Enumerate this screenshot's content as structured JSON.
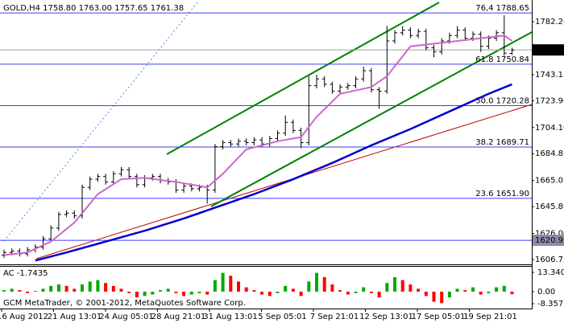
{
  "header": "GOLD,H4 1758.80 1763.00 1757.65 1761.38",
  "footer": "GCM MetaTrader, © 2001-2012, MetaQuotes Software Corp.",
  "chart_data": [
    {
      "type": "ohlc",
      "color": "#000000",
      "ylim": [
        1603.8,
        1798.2
      ],
      "yticks": [
        {
          "value": 1782.2,
          "label": "1782.20"
        },
        1743.15,
        {
          "value": 1723.9,
          "label": "1723.90"
        },
        {
          "value": 1704.1,
          "label": "1704.10"
        },
        1684.85,
        1665.05,
        {
          "value": 1645.8,
          "label": "1645.80"
        },
        {
          "value": 1626,
          "label": "1626.00"
        },
        1606.75
      ],
      "time_labels": [
        "16 Aug 2012",
        "21 Aug 13:01",
        "24 Aug 05:01",
        "28 Aug 21:01",
        "31 Aug 13:01",
        "5 Sep 05:01",
        "7 Sep 21:01",
        "12 Sep 13:01",
        "17 Sep 05:01",
        "19 Sep 21:01"
      ],
      "ohlc": [
        [
          1610,
          1614,
          1608,
          1612
        ],
        [
          1612,
          1615,
          1610,
          1613
        ],
        [
          1613,
          1615,
          1609,
          1611
        ],
        [
          1611,
          1616,
          1609,
          1614
        ],
        [
          1614,
          1618,
          1612,
          1616
        ],
        [
          1616,
          1624,
          1614,
          1622
        ],
        [
          1622,
          1632,
          1620,
          1630
        ],
        [
          1630,
          1642,
          1628,
          1640
        ],
        [
          1640,
          1643,
          1638,
          1641
        ],
        [
          1641,
          1643,
          1637,
          1639
        ],
        [
          1639,
          1662,
          1637,
          1660
        ],
        [
          1660,
          1668,
          1658,
          1666
        ],
        [
          1666,
          1670,
          1664,
          1668
        ],
        [
          1668,
          1670,
          1662,
          1664
        ],
        [
          1664,
          1672,
          1662,
          1670
        ],
        [
          1670,
          1675,
          1668,
          1673
        ],
        [
          1673,
          1675,
          1666,
          1668
        ],
        [
          1668,
          1670,
          1660,
          1662
        ],
        [
          1662,
          1669,
          1660,
          1667
        ],
        [
          1667,
          1670,
          1665,
          1668
        ],
        [
          1668,
          1670,
          1663,
          1665
        ],
        [
          1665,
          1667,
          1662,
          1664
        ],
        [
          1664,
          1666,
          1656,
          1658
        ],
        [
          1658,
          1663,
          1656,
          1661
        ],
        [
          1661,
          1663,
          1657,
          1659
        ],
        [
          1659,
          1662,
          1657,
          1660
        ],
        [
          1660,
          1662,
          1648,
          1658
        ],
        [
          1658,
          1692,
          1656,
          1690
        ],
        [
          1690,
          1695,
          1688,
          1693
        ],
        [
          1693,
          1695,
          1690,
          1692
        ],
        [
          1692,
          1696,
          1690,
          1694
        ],
        [
          1694,
          1696,
          1691,
          1693
        ],
        [
          1693,
          1697,
          1691,
          1695
        ],
        [
          1695,
          1697,
          1690,
          1692
        ],
        [
          1692,
          1698,
          1690,
          1696
        ],
        [
          1696,
          1702,
          1694,
          1700
        ],
        [
          1700,
          1713,
          1698,
          1708
        ],
        [
          1708,
          1710,
          1700,
          1702
        ],
        [
          1702,
          1704,
          1689,
          1693
        ],
        [
          1693,
          1742,
          1691,
          1735
        ],
        [
          1735,
          1743,
          1733,
          1740
        ],
        [
          1740,
          1742,
          1734,
          1736
        ],
        [
          1736,
          1738,
          1729,
          1731
        ],
        [
          1731,
          1736,
          1729,
          1734
        ],
        [
          1734,
          1737,
          1732,
          1735
        ],
        [
          1735,
          1742,
          1733,
          1740
        ],
        [
          1740,
          1749,
          1738,
          1746
        ],
        [
          1746,
          1748,
          1730,
          1732
        ],
        [
          1732,
          1734,
          1718,
          1731
        ],
        [
          1731,
          1779,
          1729,
          1768
        ],
        [
          1768,
          1776,
          1766,
          1774
        ],
        [
          1774,
          1779,
          1772,
          1776
        ],
        [
          1776,
          1778,
          1770,
          1772
        ],
        [
          1772,
          1777,
          1770,
          1775
        ],
        [
          1775,
          1777,
          1761,
          1763
        ],
        [
          1763,
          1765,
          1756,
          1760
        ],
        [
          1760,
          1770,
          1758,
          1768
        ],
        [
          1768,
          1774,
          1766,
          1772
        ],
        [
          1772,
          1779,
          1770,
          1776
        ],
        [
          1776,
          1778,
          1768,
          1770
        ],
        [
          1770,
          1775,
          1768,
          1773
        ],
        [
          1773,
          1775,
          1760,
          1764
        ],
        [
          1764,
          1772,
          1762,
          1770
        ],
        [
          1770,
          1776,
          1768,
          1774
        ],
        [
          1774,
          1787,
          1757,
          1759
        ],
        [
          1758.8,
          1763,
          1757.65,
          1761.38
        ]
      ],
      "series": [
        {
          "color": "#cc66cc",
          "x": [
            0,
            3,
            6,
            9,
            12,
            15,
            18,
            22,
            26,
            28,
            31,
            35,
            38,
            40,
            43,
            47,
            49,
            52,
            55,
            58,
            61,
            64,
            65
          ],
          "values": [
            1610,
            1612,
            1620,
            1634,
            1655,
            1666,
            1667,
            1664,
            1660,
            1670,
            1688,
            1694,
            1697,
            1712,
            1729,
            1734,
            1742,
            1764,
            1766,
            1768,
            1770,
            1772,
            1768
          ]
        },
        {
          "color": "#0000cc",
          "x": [
            4,
            8,
            13,
            18,
            23,
            27,
            32,
            37,
            42,
            47,
            52,
            57,
            62,
            65
          ],
          "values": [
            1606,
            1612,
            1620,
            1628,
            1637,
            1645,
            1655,
            1666,
            1678,
            1691,
            1703,
            1716,
            1729,
            1736
          ]
        }
      ],
      "fibo_levels": [
        {
          "value": 1788.65,
          "label": "76,4 1788.65"
        },
        {
          "value": 1750.84,
          "label": "61.8 1750.84"
        },
        {
          "value": 1720.28,
          "label": "50.0 1720.28"
        },
        {
          "value": 1689.71,
          "label": "38.2 1689.71"
        },
        {
          "value": 1651.9,
          "label": "23.6 1651.90"
        }
      ],
      "current_price": 1761.38,
      "hline": 1620.95
    },
    {
      "type": "bar",
      "title": "AC -1.7435",
      "ylim": [
        -11.14,
        17.24
      ],
      "yticks": [
        13.3407,
        {
          "value": 0,
          "label": "0.00"
        },
        -8.3573
      ],
      "colors": [
        "#00aa00",
        "#ff0000"
      ],
      "values": [
        1,
        2,
        1,
        -1,
        0.5,
        2,
        4,
        5,
        4,
        2,
        5,
        7,
        8,
        6,
        4,
        2,
        -1,
        -4,
        -3,
        -2,
        1,
        2,
        -1,
        -3,
        -2,
        -1,
        -2,
        8,
        13,
        11,
        7,
        3,
        1,
        -2,
        -3,
        -1,
        4,
        2,
        -3,
        7,
        13,
        10,
        5,
        1,
        -2,
        -1,
        3,
        -1,
        -4,
        6,
        10,
        8,
        5,
        2,
        -3,
        -7,
        -8,
        -4,
        2,
        1,
        3,
        -2,
        -1,
        3,
        4,
        -1.7435
      ]
    }
  ]
}
